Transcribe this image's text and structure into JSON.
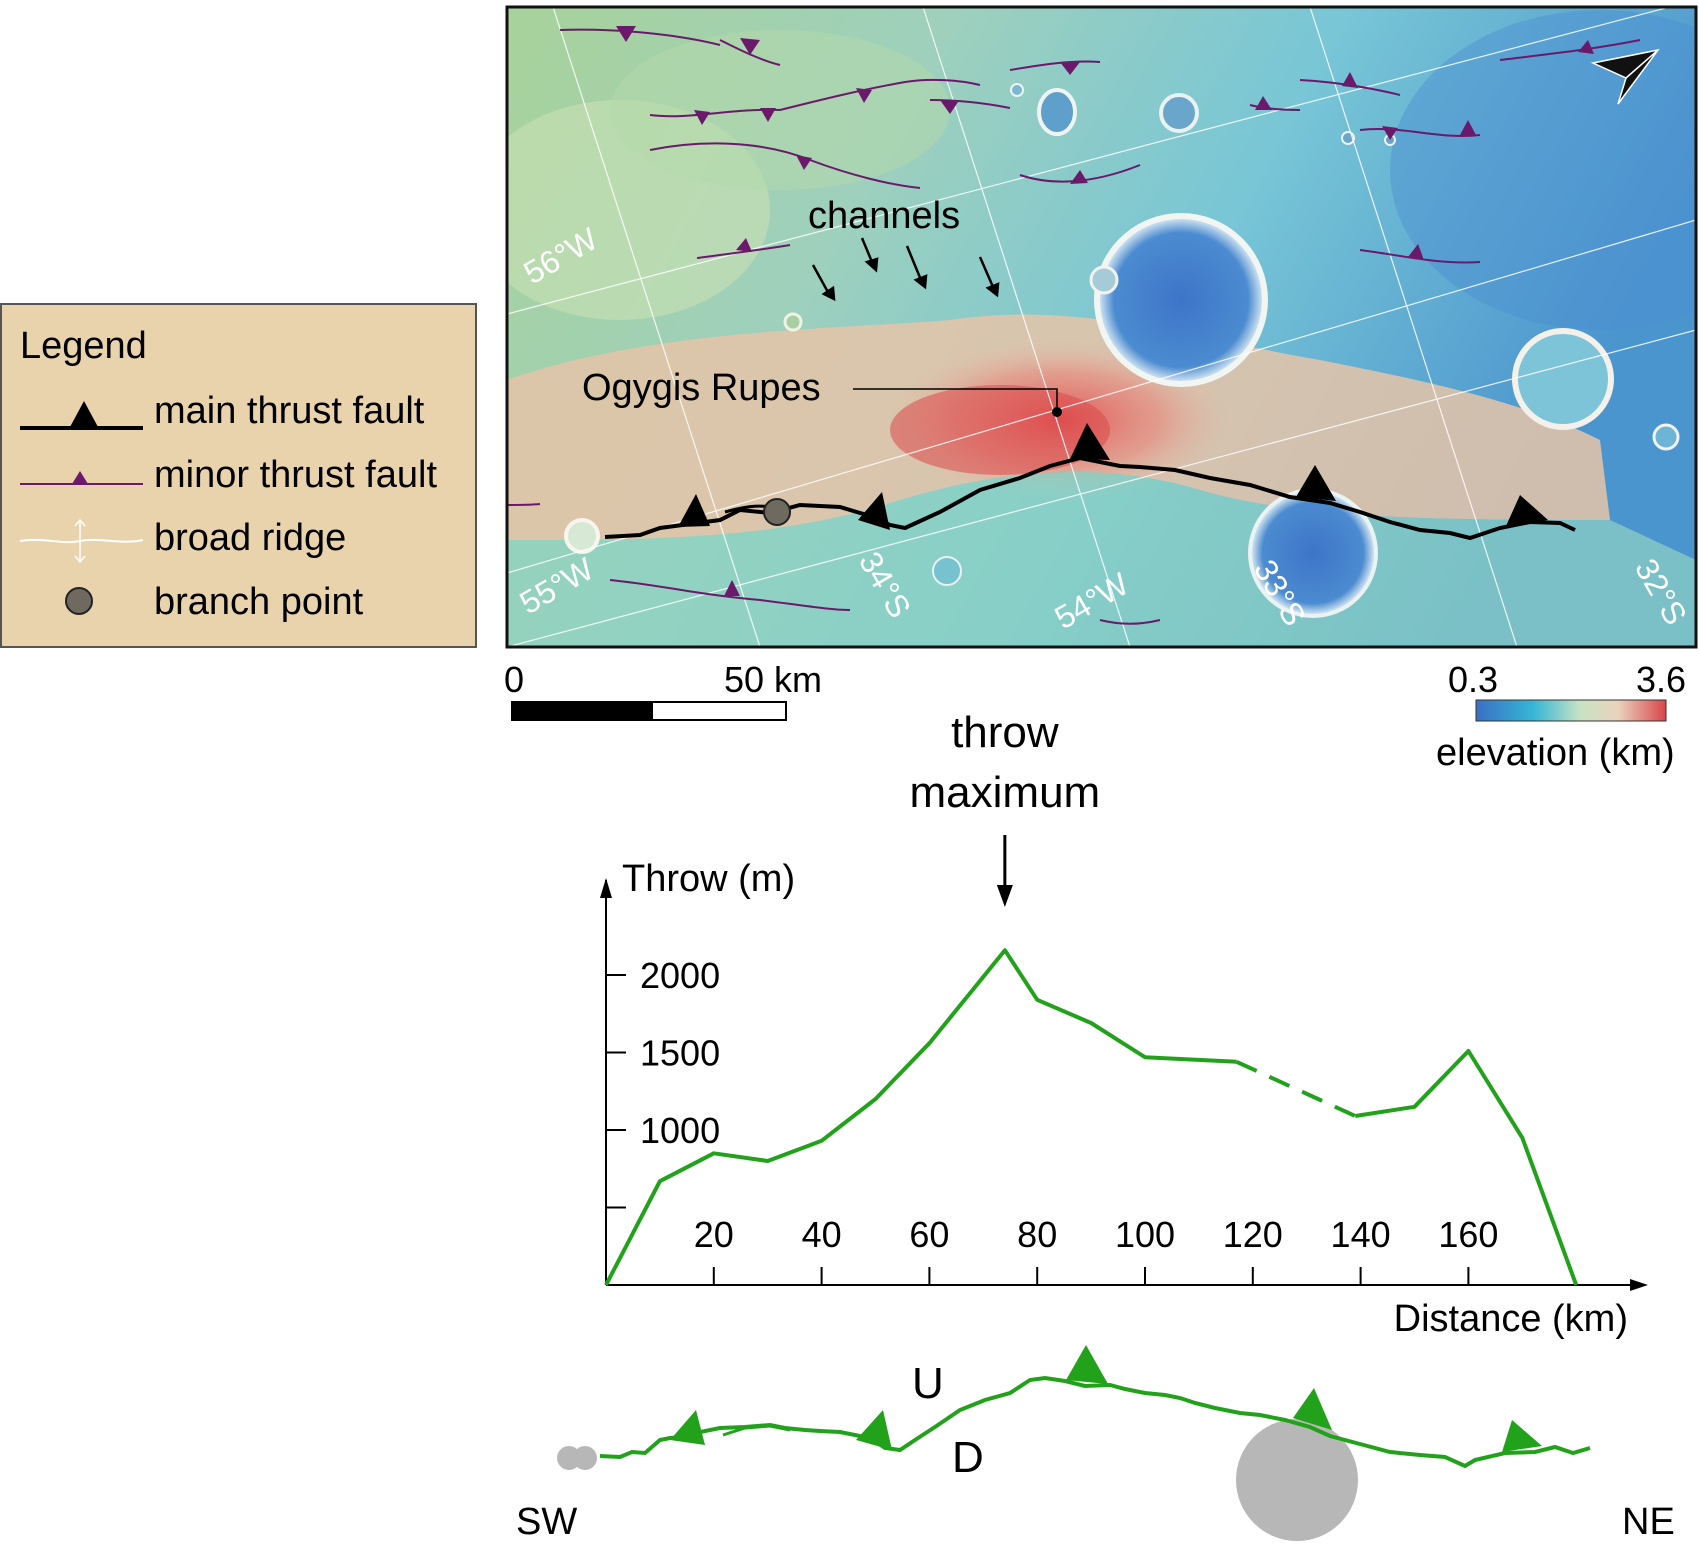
{
  "legend": {
    "title": "Legend",
    "items": [
      {
        "label": "main thrust fault",
        "icon": "main-thrust-fault-symbol"
      },
      {
        "label": "minor thrust fault",
        "icon": "minor-thrust-fault-symbol"
      },
      {
        "label": "broad ridge",
        "icon": "broad-ridge-symbol"
      },
      {
        "label": "branch point",
        "icon": "branch-point-symbol"
      }
    ],
    "background_color": "#e8d3ad"
  },
  "map": {
    "annotations": {
      "channels": "channels",
      "fault_name": "Ogygis Rupes"
    },
    "longitude_labels": [
      "56°W",
      "55°W",
      "54°W"
    ],
    "latitude_labels": [
      "34°S",
      "33°S",
      "32°S"
    ],
    "north_arrow_icon": "north-arrow-icon",
    "colors": {
      "main_fault": "#000000",
      "minor_fault": "#6b1a6b",
      "low_elevation": "#3a6fc4",
      "high_elevation": "#d8454a"
    }
  },
  "scale_bar": {
    "start_label": "0",
    "end_label": "50 km"
  },
  "elevation_bar": {
    "min_label": "0.3",
    "max_label": "3.6",
    "title": "elevation (km)"
  },
  "chart_data": {
    "type": "line",
    "title": "",
    "ylabel": "Throw (m)",
    "xlabel": "Distance (km)",
    "xlim": [
      0,
      180
    ],
    "ylim": [
      0,
      2300
    ],
    "x_ticks": [
      20,
      40,
      60,
      80,
      100,
      120,
      140,
      160
    ],
    "y_ticks": [
      500,
      1000,
      1500,
      2000
    ],
    "y_tick_labels": [
      "1000",
      "1500",
      "2000"
    ],
    "annotation": "throw maximum",
    "annotation_x": 74,
    "series": [
      {
        "style": "solid",
        "x": [
          0,
          10,
          20,
          30,
          40,
          50,
          60,
          74,
          80,
          90,
          100,
          117
        ],
        "y": [
          0,
          670,
          850,
          800,
          930,
          1200,
          1560,
          2160,
          1840,
          1690,
          1470,
          1440
        ]
      },
      {
        "style": "dashed",
        "x": [
          117,
          139
        ],
        "y": [
          1440,
          1090
        ]
      },
      {
        "style": "solid",
        "x": [
          139,
          150,
          160,
          170,
          180
        ],
        "y": [
          1090,
          1150,
          1510,
          950,
          0
        ]
      }
    ],
    "color": "#22a21b"
  },
  "profile": {
    "upthrown_label": "U",
    "downthrown_label": "D",
    "left_label": "SW",
    "right_label": "NE",
    "crater_icon": "crater-icon"
  }
}
